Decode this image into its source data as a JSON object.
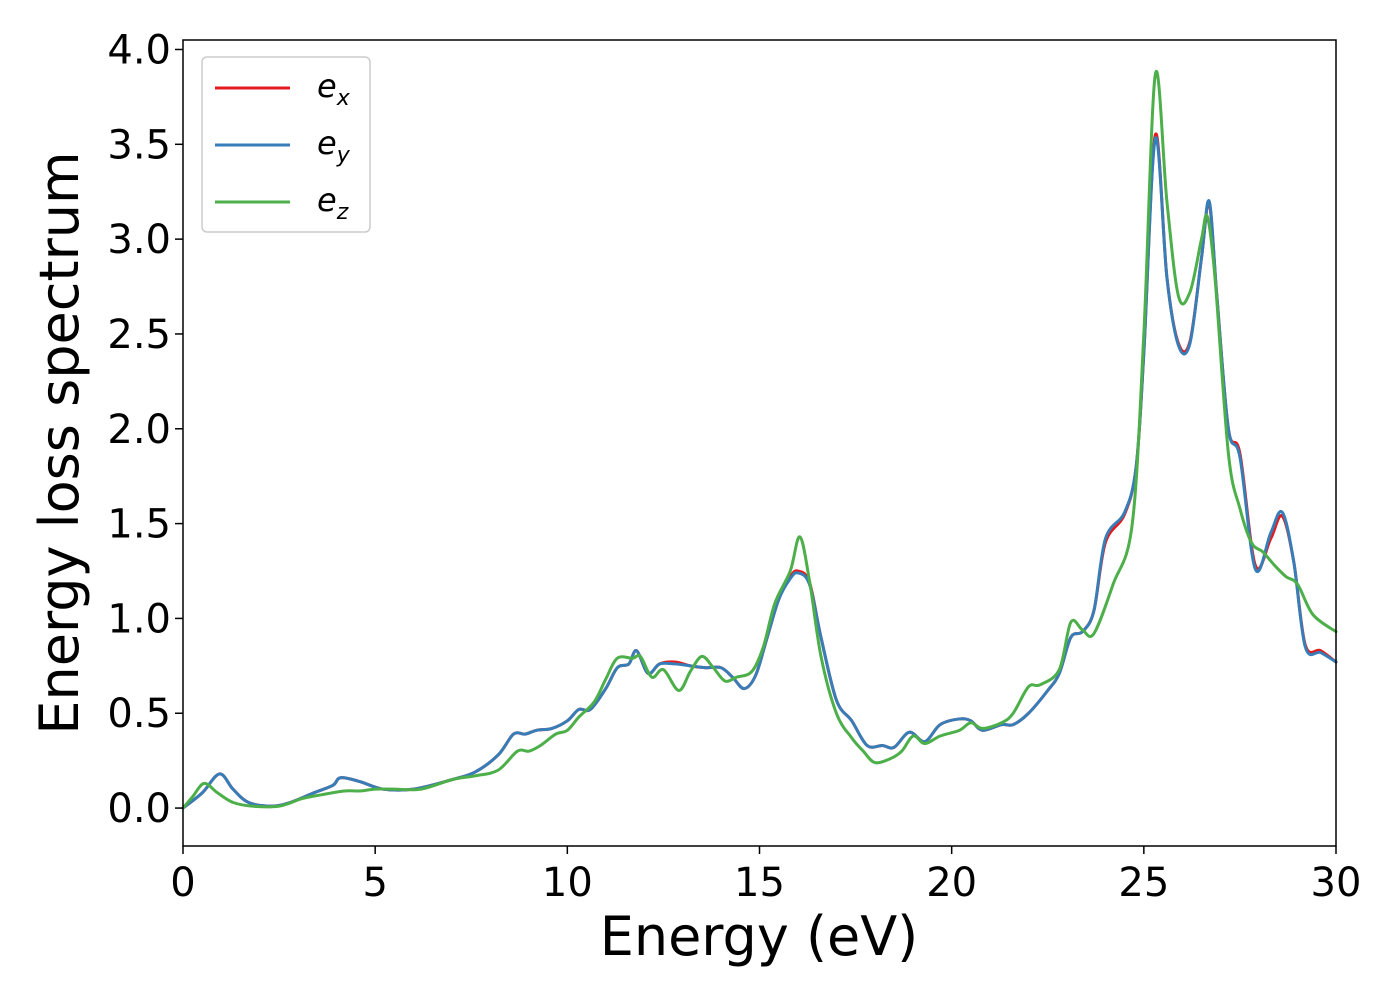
{
  "chart_data": {
    "type": "line",
    "xlabel": "Energy (eV)",
    "ylabel": "Energy loss spectrum",
    "xlim": [
      0,
      30
    ],
    "ylim": [
      -0.2,
      4.05
    ],
    "xticks": [
      "0",
      "5",
      "10",
      "15",
      "20",
      "25",
      "30"
    ],
    "yticks": [
      "0.0",
      "0.5",
      "1.0",
      "1.5",
      "2.0",
      "2.5",
      "3.0",
      "3.5",
      "4.0"
    ],
    "grid": false,
    "legend_position": "top-left",
    "series": [
      {
        "name": "e_x",
        "label_main": "e",
        "label_sub": "x",
        "color": "#e41a1c",
        "points": [
          [
            0,
            0
          ],
          [
            0.5,
            0.08
          ],
          [
            0.95,
            0.18
          ],
          [
            1.3,
            0.1
          ],
          [
            1.7,
            0.03
          ],
          [
            2.3,
            0.01
          ],
          [
            2.8,
            0.03
          ],
          [
            3.4,
            0.08
          ],
          [
            3.9,
            0.12
          ],
          [
            4.1,
            0.16
          ],
          [
            4.6,
            0.14
          ],
          [
            5.2,
            0.1
          ],
          [
            6,
            0.1
          ],
          [
            7,
            0.15
          ],
          [
            7.6,
            0.19
          ],
          [
            8.2,
            0.28
          ],
          [
            8.6,
            0.39
          ],
          [
            8.9,
            0.39
          ],
          [
            9.2,
            0.41
          ],
          [
            9.6,
            0.42
          ],
          [
            10,
            0.46
          ],
          [
            10.3,
            0.52
          ],
          [
            10.6,
            0.52
          ],
          [
            11,
            0.63
          ],
          [
            11.3,
            0.74
          ],
          [
            11.6,
            0.76
          ],
          [
            11.8,
            0.83
          ],
          [
            12.1,
            0.71
          ],
          [
            12.4,
            0.76
          ],
          [
            12.8,
            0.77
          ],
          [
            13.2,
            0.75
          ],
          [
            13.6,
            0.74
          ],
          [
            14,
            0.74
          ],
          [
            14.3,
            0.69
          ],
          [
            14.6,
            0.63
          ],
          [
            14.9,
            0.7
          ],
          [
            15.2,
            0.9
          ],
          [
            15.5,
            1.1
          ],
          [
            15.8,
            1.22
          ],
          [
            16,
            1.25
          ],
          [
            16.3,
            1.19
          ],
          [
            16.6,
            0.9
          ],
          [
            17,
            0.57
          ],
          [
            17.4,
            0.46
          ],
          [
            17.8,
            0.33
          ],
          [
            18.2,
            0.33
          ],
          [
            18.5,
            0.32
          ],
          [
            18.9,
            0.4
          ],
          [
            19.3,
            0.35
          ],
          [
            19.7,
            0.44
          ],
          [
            20.2,
            0.47
          ],
          [
            20.5,
            0.46
          ],
          [
            20.8,
            0.41
          ],
          [
            21.3,
            0.44
          ],
          [
            21.6,
            0.44
          ],
          [
            22,
            0.5
          ],
          [
            22.5,
            0.62
          ],
          [
            22.8,
            0.71
          ],
          [
            23.1,
            0.9
          ],
          [
            23.4,
            0.93
          ],
          [
            23.7,
            1.04
          ],
          [
            24,
            1.4
          ],
          [
            24.5,
            1.55
          ],
          [
            24.8,
            1.8
          ],
          [
            25,
            2.4
          ],
          [
            25.3,
            3.55
          ],
          [
            25.6,
            2.8
          ],
          [
            25.9,
            2.45
          ],
          [
            26.2,
            2.46
          ],
          [
            26.5,
            2.9
          ],
          [
            26.7,
            3.19
          ],
          [
            26.9,
            2.7
          ],
          [
            27.2,
            2.0
          ],
          [
            27.5,
            1.87
          ],
          [
            27.9,
            1.28
          ],
          [
            28.3,
            1.42
          ],
          [
            28.6,
            1.54
          ],
          [
            28.9,
            1.3
          ],
          [
            29.2,
            0.86
          ],
          [
            29.6,
            0.83
          ],
          [
            30,
            0.77
          ]
        ]
      },
      {
        "name": "e_y",
        "label_main": "e",
        "label_sub": "y",
        "color": "#377eb8",
        "points": [
          [
            0,
            0
          ],
          [
            0.5,
            0.08
          ],
          [
            0.95,
            0.18
          ],
          [
            1.3,
            0.1
          ],
          [
            1.7,
            0.03
          ],
          [
            2.3,
            0.01
          ],
          [
            2.8,
            0.03
          ],
          [
            3.4,
            0.08
          ],
          [
            3.9,
            0.12
          ],
          [
            4.1,
            0.16
          ],
          [
            4.6,
            0.14
          ],
          [
            5.2,
            0.1
          ],
          [
            6,
            0.1
          ],
          [
            7,
            0.15
          ],
          [
            7.6,
            0.19
          ],
          [
            8.2,
            0.28
          ],
          [
            8.6,
            0.39
          ],
          [
            8.9,
            0.39
          ],
          [
            9.2,
            0.41
          ],
          [
            9.6,
            0.42
          ],
          [
            10,
            0.46
          ],
          [
            10.3,
            0.52
          ],
          [
            10.6,
            0.52
          ],
          [
            11,
            0.63
          ],
          [
            11.3,
            0.74
          ],
          [
            11.6,
            0.76
          ],
          [
            11.8,
            0.83
          ],
          [
            12.1,
            0.71
          ],
          [
            12.4,
            0.76
          ],
          [
            12.8,
            0.76
          ],
          [
            13.2,
            0.75
          ],
          [
            13.6,
            0.74
          ],
          [
            14,
            0.74
          ],
          [
            14.3,
            0.69
          ],
          [
            14.6,
            0.63
          ],
          [
            14.9,
            0.7
          ],
          [
            15.2,
            0.9
          ],
          [
            15.5,
            1.1
          ],
          [
            15.8,
            1.21
          ],
          [
            16,
            1.24
          ],
          [
            16.3,
            1.18
          ],
          [
            16.6,
            0.9
          ],
          [
            17,
            0.57
          ],
          [
            17.4,
            0.46
          ],
          [
            17.8,
            0.33
          ],
          [
            18.2,
            0.33
          ],
          [
            18.5,
            0.32
          ],
          [
            18.9,
            0.4
          ],
          [
            19.3,
            0.35
          ],
          [
            19.7,
            0.44
          ],
          [
            20.2,
            0.47
          ],
          [
            20.5,
            0.46
          ],
          [
            20.8,
            0.41
          ],
          [
            21.3,
            0.44
          ],
          [
            21.6,
            0.44
          ],
          [
            22,
            0.5
          ],
          [
            22.5,
            0.62
          ],
          [
            22.8,
            0.71
          ],
          [
            23.1,
            0.9
          ],
          [
            23.4,
            0.93
          ],
          [
            23.7,
            1.04
          ],
          [
            24,
            1.42
          ],
          [
            24.5,
            1.56
          ],
          [
            24.8,
            1.8
          ],
          [
            25,
            2.4
          ],
          [
            25.3,
            3.53
          ],
          [
            25.6,
            2.8
          ],
          [
            25.9,
            2.44
          ],
          [
            26.2,
            2.45
          ],
          [
            26.5,
            2.9
          ],
          [
            26.7,
            3.2
          ],
          [
            26.9,
            2.7
          ],
          [
            27.2,
            2.0
          ],
          [
            27.5,
            1.85
          ],
          [
            27.9,
            1.26
          ],
          [
            28.3,
            1.45
          ],
          [
            28.6,
            1.56
          ],
          [
            28.9,
            1.3
          ],
          [
            29.2,
            0.85
          ],
          [
            29.6,
            0.82
          ],
          [
            30,
            0.77
          ]
        ]
      },
      {
        "name": "e_z",
        "label_main": "e",
        "label_sub": "z",
        "color": "#4daf4a",
        "points": [
          [
            0,
            0
          ],
          [
            0.25,
            0.06
          ],
          [
            0.55,
            0.13
          ],
          [
            0.9,
            0.08
          ],
          [
            1.3,
            0.03
          ],
          [
            1.8,
            0.01
          ],
          [
            2.5,
            0.01
          ],
          [
            3.1,
            0.05
          ],
          [
            3.6,
            0.07
          ],
          [
            4.2,
            0.09
          ],
          [
            4.6,
            0.09
          ],
          [
            5,
            0.1
          ],
          [
            5.5,
            0.1
          ],
          [
            6.2,
            0.1
          ],
          [
            7,
            0.15
          ],
          [
            7.6,
            0.17
          ],
          [
            8.2,
            0.2
          ],
          [
            8.7,
            0.3
          ],
          [
            9,
            0.3
          ],
          [
            9.3,
            0.33
          ],
          [
            9.7,
            0.39
          ],
          [
            10,
            0.41
          ],
          [
            10.3,
            0.48
          ],
          [
            10.7,
            0.56
          ],
          [
            11,
            0.68
          ],
          [
            11.3,
            0.79
          ],
          [
            11.7,
            0.79
          ],
          [
            11.9,
            0.8
          ],
          [
            12.2,
            0.69
          ],
          [
            12.5,
            0.73
          ],
          [
            12.9,
            0.62
          ],
          [
            13.2,
            0.72
          ],
          [
            13.5,
            0.8
          ],
          [
            13.8,
            0.74
          ],
          [
            14.1,
            0.67
          ],
          [
            14.4,
            0.69
          ],
          [
            14.8,
            0.72
          ],
          [
            15.1,
            0.85
          ],
          [
            15.4,
            1.08
          ],
          [
            15.8,
            1.25
          ],
          [
            16.05,
            1.43
          ],
          [
            16.3,
            1.2
          ],
          [
            16.6,
            0.8
          ],
          [
            17,
            0.5
          ],
          [
            17.4,
            0.37
          ],
          [
            17.7,
            0.3
          ],
          [
            18,
            0.24
          ],
          [
            18.4,
            0.26
          ],
          [
            18.7,
            0.3
          ],
          [
            19,
            0.38
          ],
          [
            19.3,
            0.34
          ],
          [
            19.7,
            0.38
          ],
          [
            20.2,
            0.41
          ],
          [
            20.5,
            0.45
          ],
          [
            20.8,
            0.42
          ],
          [
            21.3,
            0.45
          ],
          [
            21.6,
            0.5
          ],
          [
            22,
            0.64
          ],
          [
            22.3,
            0.65
          ],
          [
            22.8,
            0.73
          ],
          [
            23.1,
            0.98
          ],
          [
            23.4,
            0.94
          ],
          [
            23.7,
            0.92
          ],
          [
            24.2,
            1.18
          ],
          [
            24.7,
            1.5
          ],
          [
            25,
            2.5
          ],
          [
            25.3,
            3.87
          ],
          [
            25.6,
            3.2
          ],
          [
            25.9,
            2.7
          ],
          [
            26.2,
            2.72
          ],
          [
            26.5,
            3.0
          ],
          [
            26.65,
            3.12
          ],
          [
            26.85,
            2.8
          ],
          [
            27.2,
            1.87
          ],
          [
            27.5,
            1.58
          ],
          [
            27.8,
            1.4
          ],
          [
            28.1,
            1.35
          ],
          [
            28.4,
            1.28
          ],
          [
            28.7,
            1.22
          ],
          [
            29,
            1.18
          ],
          [
            29.4,
            1.02
          ],
          [
            30,
            0.93
          ]
        ]
      }
    ]
  }
}
